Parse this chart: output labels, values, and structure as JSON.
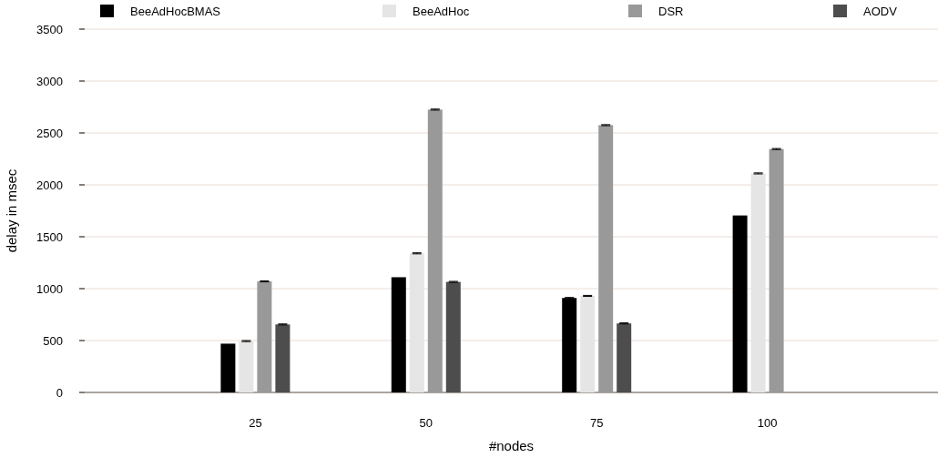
{
  "chart_data": {
    "type": "bar",
    "xlabel": "#nodes",
    "ylabel": "delay in msec",
    "categories": [
      "25",
      "50",
      "75",
      "100"
    ],
    "series": [
      {
        "name": "BeeAdHocBMAS",
        "color": "#000000",
        "values": [
          470,
          1110,
          910,
          1705
        ],
        "errors": [
          null,
          null,
          5,
          null
        ]
      },
      {
        "name": "BeeAdHoc",
        "color": "#e5e5e5",
        "values": [
          495,
          1340,
          930,
          2110
        ],
        "errors": [
          5,
          5,
          5,
          5
        ]
      },
      {
        "name": "DSR",
        "color": "#999999",
        "values": [
          1070,
          2725,
          2575,
          2345
        ],
        "errors": [
          5,
          5,
          5,
          5
        ]
      },
      {
        "name": "AODV",
        "color": "#4d4d4d",
        "values": [
          655,
          1065,
          665,
          null
        ],
        "errors": [
          5,
          5,
          5,
          null
        ]
      }
    ],
    "ylim": [
      0,
      3500
    ],
    "yticks": [
      0,
      500,
      1000,
      1500,
      2000,
      2500,
      3000,
      3500
    ],
    "grid": "y",
    "legend": "top"
  }
}
